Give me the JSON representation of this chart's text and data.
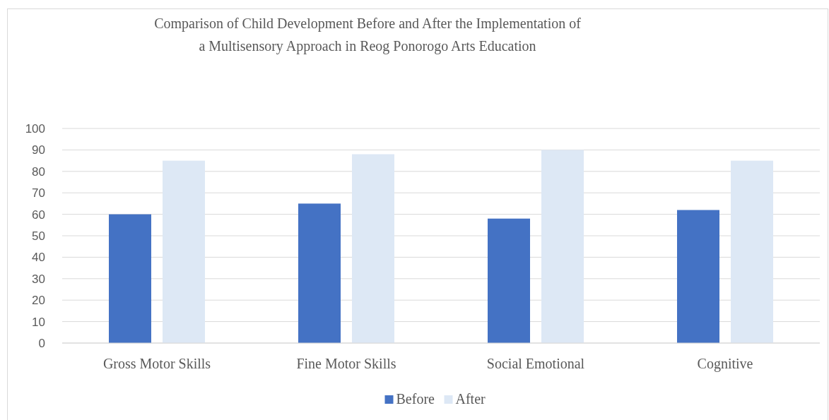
{
  "chart_data": {
    "type": "bar",
    "title": "Comparison of Child Development Before and After the Implementation of a Multisensory Approach in Reog Ponorogo Arts Education",
    "categories": [
      "Gross Motor Skills",
      "Fine Motor Skills",
      "Social Emotional",
      "Cognitive"
    ],
    "series": [
      {
        "name": "Before",
        "color": "#4472c4",
        "values": [
          60,
          65,
          58,
          62
        ]
      },
      {
        "name": "After",
        "color": "#dde8f5",
        "values": [
          85,
          88,
          90,
          85
        ]
      }
    ],
    "ylim": [
      0,
      100
    ],
    "yticks": [
      0,
      10,
      20,
      30,
      40,
      50,
      60,
      70,
      80,
      90,
      100
    ],
    "grid": "y",
    "legend": "bottom"
  }
}
